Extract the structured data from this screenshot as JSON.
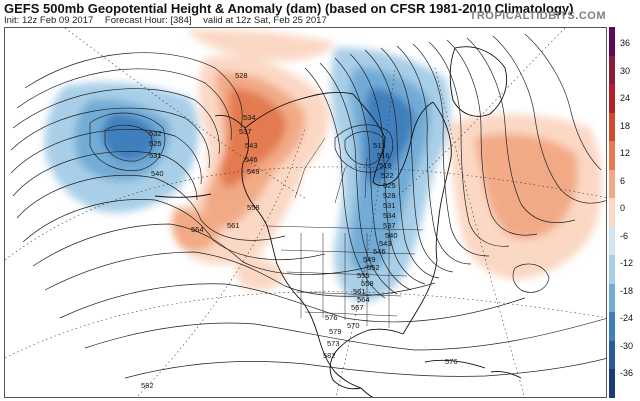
{
  "header": {
    "title": "GEFS 500mb Geopotential Height & Anomaly (dam) (based on CFSR 1981-2010 Climatology)",
    "init": "Init: 12z Feb 09 2017",
    "forecast_hour": "Forecast Hour: [384]",
    "valid": "valid at 12z Sat, Feb 25 2017",
    "brand": "TROPICALTIDBITS.COM"
  },
  "colorbar": {
    "ticks": [
      "36",
      "30",
      "24",
      "18",
      "12",
      "6",
      "0",
      "-6",
      "-12",
      "-18",
      "-24",
      "-30",
      "-36"
    ],
    "colors": [
      "#5b0a5c",
      "#8a1c3c",
      "#b3202a",
      "#d04b2e",
      "#e47a4f",
      "#f2aa86",
      "#fbd8c4",
      "#d2e6f2",
      "#a9cfe8",
      "#72acd6",
      "#3f7fbe",
      "#2a5a9e",
      "#1d3a7a"
    ]
  },
  "map": {
    "contour_labels": {
      "cl_528": "528",
      "cl_534": "534",
      "cl_537": "537",
      "cl_543": "543",
      "cl_546": "546",
      "cl_549": "549",
      "cl_532": "532",
      "cl_525": "525",
      "cl_531": "531",
      "cl_540": "540",
      "cl_558": "558",
      "cl_564": "564",
      "cl_561": "561",
      "cl_513": "513",
      "cl_516": "516",
      "cl_519": "519",
      "cl_522": "522",
      "cl_e525": "525",
      "cl_e528": "528",
      "cl_e531": "531",
      "cl_e534": "534",
      "cl_e537": "537",
      "cl_e540": "540",
      "cl_e543": "543",
      "cl_e546": "546",
      "cl_e549": "549",
      "cl_e552": "552",
      "cl_e555": "555",
      "cl_e558": "558",
      "cl_e561": "561",
      "cl_e564": "564",
      "cl_e567": "567",
      "cl_570": "570",
      "cl_573": "573",
      "cl_576": "576",
      "cl_579": "579",
      "cl_582a": "582",
      "cl_582b": "582",
      "cl_576b": "576"
    }
  }
}
